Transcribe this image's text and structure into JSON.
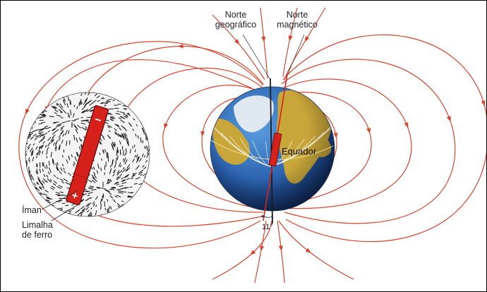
{
  "labels": {
    "geo_north": [
      "Norte",
      "geográfico"
    ],
    "mag_north": [
      "Norte",
      "magnético"
    ],
    "equator": "Equador",
    "magnet": "Íman",
    "filings": [
      "Limalha",
      "de ferro"
    ],
    "angle": "11°",
    "plus_sign": "+",
    "minus_sign": "−"
  },
  "colors": {
    "field_line": "#d9442f",
    "magnet_fill": "#d6201a",
    "axis_geo": "#1a1a1a",
    "axis_mag": "#d6201a",
    "ocean": "#2f6fb8",
    "land": "#c9a63a",
    "greenland": "#dfe8f0"
  },
  "icons": {
    "bar_magnet": "bar-magnet-icon",
    "earth_globe": "earth-globe-icon",
    "iron_filings": "iron-filings-pattern"
  }
}
